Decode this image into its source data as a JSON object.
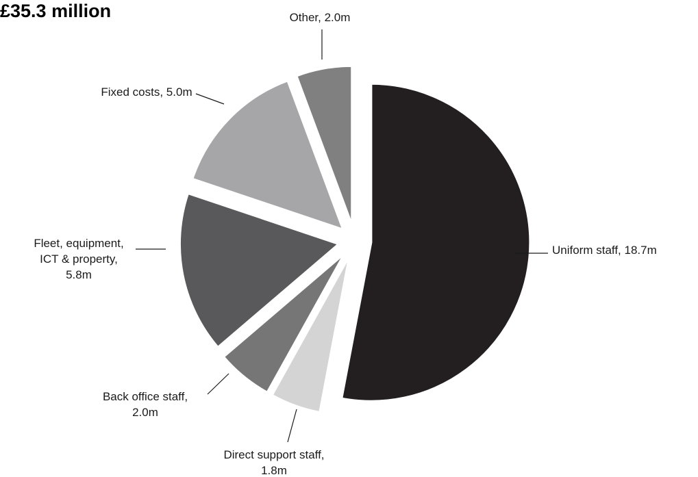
{
  "chart_data": {
    "type": "pie",
    "title": "£35.3 million",
    "total": 35.3,
    "unit": "£m",
    "slices": [
      {
        "label": "Uniform staff, 18.7m",
        "value": 18.7,
        "color": "#231f20"
      },
      {
        "label": "Direct support staff, 1.8m",
        "value": 1.8,
        "color": "#d4d4d4"
      },
      {
        "label": "Back office staff, 2.0m",
        "value": 2.0,
        "color": "#767676"
      },
      {
        "label": "Fleet, equipment, ICT & property, 5.8m",
        "value": 5.8,
        "color": "#59595b"
      },
      {
        "label": "Fixed costs, 5.0m",
        "value": 5.0,
        "color": "#a6a6a8"
      },
      {
        "label": "Other, 2.0m",
        "value": 2.0,
        "color": "#808080"
      }
    ],
    "legend": "none",
    "exploded": true
  }
}
